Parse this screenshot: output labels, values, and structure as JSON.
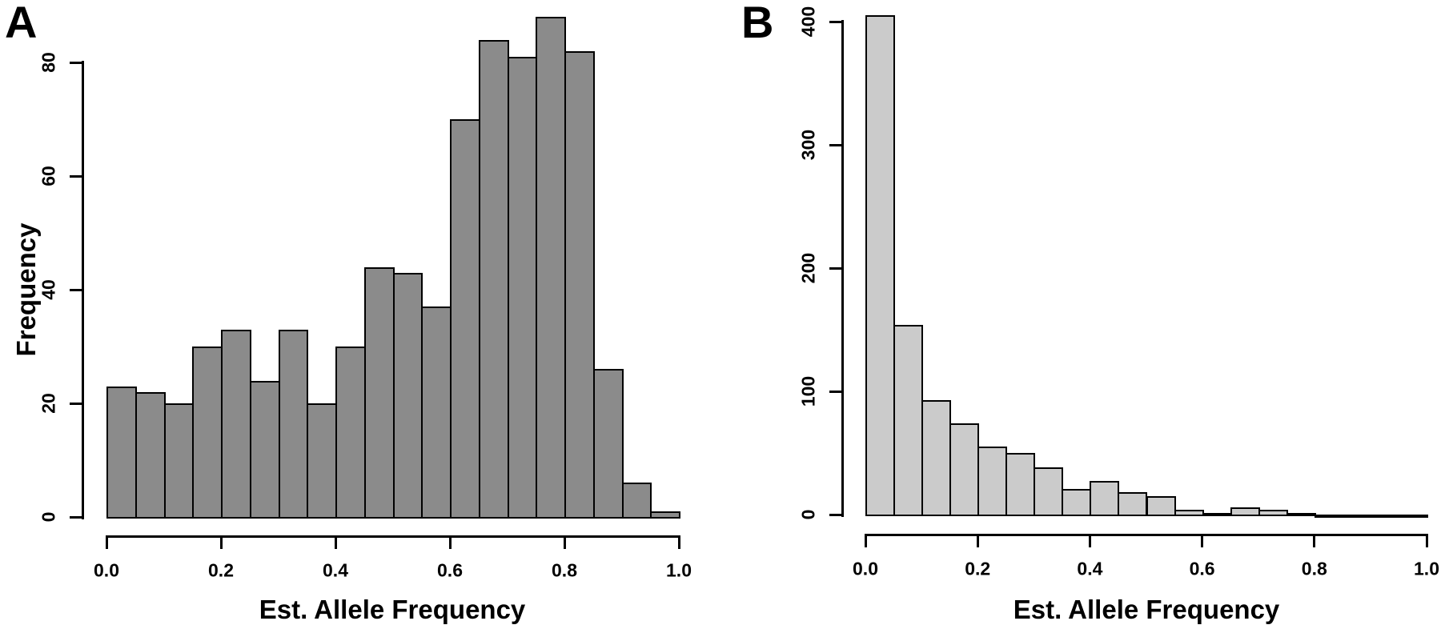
{
  "figure": {
    "description": "Two-panel histogram figure",
    "panels": [
      {
        "letter": "A"
      },
      {
        "letter": "B"
      }
    ]
  },
  "chart_data": [
    {
      "type": "bar",
      "subtype": "histogram",
      "panel_label": "A",
      "title": "",
      "xlabel": "Est. Allele Frequency",
      "ylabel": "Frequency",
      "x_min": 0.0,
      "x_max": 1.0,
      "bin_width": 0.05,
      "x_tick_labels": [
        "0.0",
        "0.2",
        "0.4",
        "0.6",
        "0.8",
        "1.0"
      ],
      "x_tick_values": [
        0.0,
        0.2,
        0.4,
        0.6,
        0.8,
        1.0
      ],
      "y_tick_labels": [
        "0",
        "20",
        "40",
        "60",
        "80"
      ],
      "y_tick_values": [
        0,
        20,
        40,
        60,
        80
      ],
      "ylim": [
        0,
        88
      ],
      "grid": false,
      "legend": "none",
      "bar_fill": "#8b8b8b",
      "bar_border": "#000000",
      "values": [
        23,
        22,
        20,
        30,
        33,
        24,
        33,
        20,
        30,
        44,
        43,
        37,
        70,
        84,
        81,
        88,
        82,
        26,
        6,
        1
      ]
    },
    {
      "type": "bar",
      "subtype": "histogram",
      "panel_label": "B",
      "title": "",
      "xlabel": "Est. Allele Frequency",
      "ylabel": "",
      "x_min": 0.0,
      "x_max": 1.0,
      "bin_width": 0.05,
      "x_tick_labels": [
        "0.0",
        "0.2",
        "0.4",
        "0.6",
        "0.8",
        "1.0"
      ],
      "x_tick_values": [
        0.0,
        0.2,
        0.4,
        0.6,
        0.8,
        1.0
      ],
      "y_tick_labels": [
        "0",
        "100",
        "200",
        "300",
        "400"
      ],
      "y_tick_values": [
        0,
        100,
        200,
        300,
        400
      ],
      "ylim": [
        0,
        405
      ],
      "grid": false,
      "legend": "none",
      "bar_fill": "#cbcbcb",
      "bar_border": "#000000",
      "values": [
        405,
        154,
        93,
        74,
        55,
        50,
        38,
        21,
        27,
        18,
        15,
        4,
        1,
        6,
        4,
        1,
        0,
        0,
        0,
        0
      ]
    }
  ]
}
